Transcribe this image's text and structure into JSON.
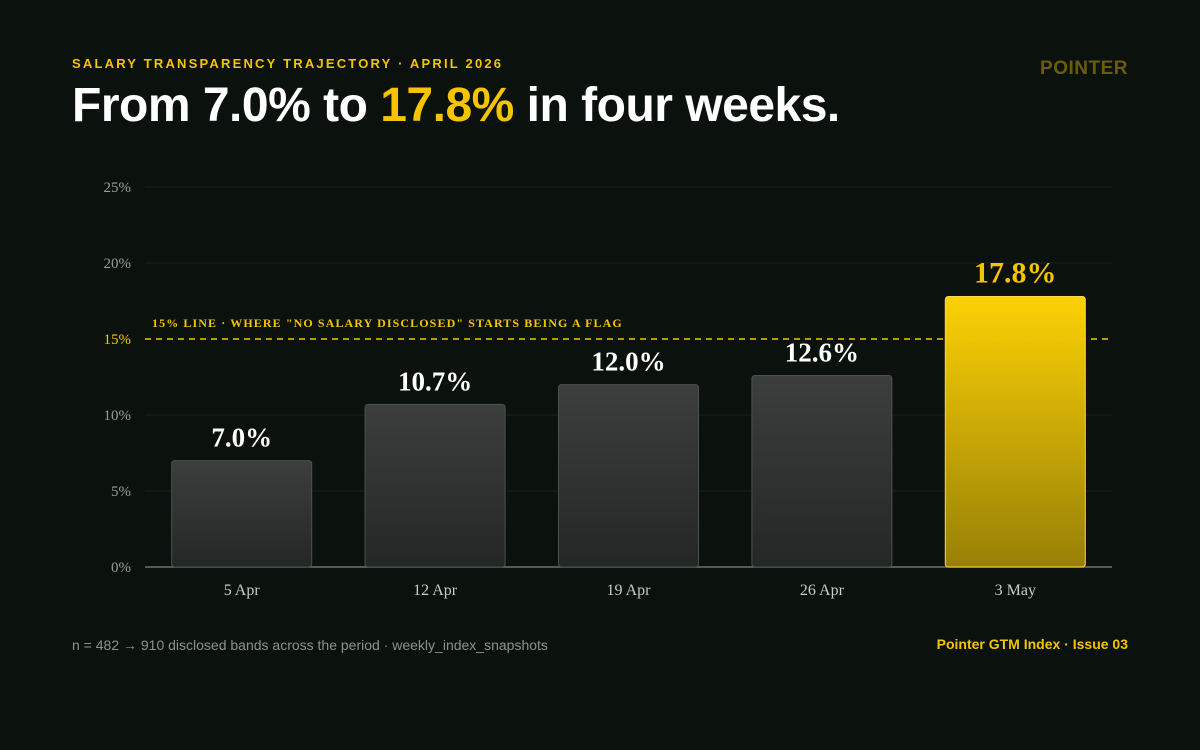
{
  "header": {
    "eyebrow": "SALARY TRANSPARENCY TRAJECTORY · APRIL 2026",
    "brand": "POINTER",
    "title_before": "From 7.0% to ",
    "title_highlight": "17.8%",
    "title_after": " in four weeks."
  },
  "footer": {
    "note": "n = 482 → 910 disclosed bands across the period · weekly_index_snapshots",
    "issue": "Pointer GTM Index · Issue 03"
  },
  "colors": {
    "background": "#0b120e",
    "accent": "#f5c400",
    "bar": "#2f3331",
    "highlight_bar": "#f5c400"
  },
  "chart_data": {
    "type": "bar",
    "categories": [
      "5 Apr",
      "12 Apr",
      "19 Apr",
      "26 Apr",
      "3 May"
    ],
    "values": [
      7.0,
      10.7,
      12.0,
      12.6,
      17.8
    ],
    "value_labels": [
      "7.0%",
      "10.7%",
      "12.0%",
      "12.6%",
      "17.8%"
    ],
    "highlight_index": 4,
    "ylim": [
      0,
      25
    ],
    "yticks": [
      0,
      5,
      10,
      15,
      20,
      25
    ],
    "ytick_labels": [
      "0%",
      "5%",
      "10%",
      "15%",
      "20%",
      "25%"
    ],
    "reference_line": {
      "value": 15,
      "label": "15% LINE · WHERE \"NO SALARY DISCLOSED\" STARTS BEING A FLAG",
      "tick_label": "15%"
    },
    "grid": true,
    "xlabel": "",
    "ylabel": ""
  }
}
